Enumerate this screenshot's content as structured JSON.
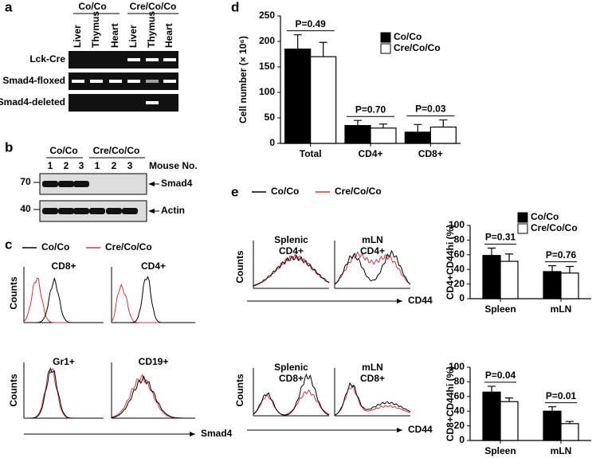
{
  "panels": {
    "a": {
      "label": "a",
      "groups": [
        "Co/Co",
        "Cre/Co/Co"
      ],
      "lanes": [
        "Liver",
        "Thymus",
        "Heart",
        "Liver",
        "Thymus",
        "Heart"
      ],
      "rows": [
        "Lck-Cre",
        "Smad4-floxed",
        "Smad4-deleted"
      ]
    },
    "b": {
      "label": "b",
      "groups": [
        "Co/Co",
        "Cre/Co/Co"
      ],
      "lanes": [
        "1",
        "2",
        "3",
        "1",
        "2",
        "3"
      ],
      "lane_title": "Mouse No.",
      "markers": [
        "70",
        "40"
      ],
      "proteins": [
        "Smad4",
        "Actin"
      ]
    },
    "c": {
      "label": "c",
      "legend": [
        "Co/Co",
        "Cre/Co/Co"
      ],
      "plots": [
        "CD8+",
        "CD4+",
        "Gr1+",
        "CD19+"
      ],
      "y_label": "Counts",
      "x_label": "Smad4"
    },
    "d": {
      "label": "d"
    },
    "e": {
      "label": "e",
      "legend": [
        "Co/Co",
        "Cre/Co/Co"
      ],
      "plots": [
        [
          "Splenic",
          "CD4+"
        ],
        [
          "mLN",
          "CD4+"
        ],
        [
          "Splenic",
          "CD8+"
        ],
        [
          "mLN",
          "CD8+"
        ]
      ],
      "y_label": "Counts",
      "x_label": "CD44"
    }
  },
  "chart_data": [
    {
      "type": "bar",
      "categories": [
        "Total",
        "CD4+",
        "CD8+"
      ],
      "series": [
        {
          "name": "Co/Co",
          "color": "#000000",
          "values": [
            185,
            35,
            22
          ],
          "errors": [
            28,
            10,
            15
          ]
        },
        {
          "name": "Cre/Co/Co",
          "color": "#ffffff",
          "values": [
            170,
            30,
            32
          ],
          "errors": [
            28,
            8,
            14
          ]
        }
      ],
      "y_label": "Cell number (× 10⁶)",
      "ylim": [
        0,
        250
      ],
      "yticks": [
        0,
        50,
        100,
        150,
        200,
        250
      ],
      "annotations": [
        "P=0.49",
        "P=0.70",
        "P=0.03"
      ],
      "legend": "upper right"
    },
    {
      "type": "bar",
      "categories": [
        "Spleen",
        "mLN"
      ],
      "series": [
        {
          "name": "Co/Co",
          "color": "#000000",
          "values": [
            59,
            37
          ],
          "errors": [
            10,
            8
          ]
        },
        {
          "name": "Cre/Co/Co",
          "color": "#ffffff",
          "values": [
            51,
            35
          ],
          "errors": [
            10,
            9
          ]
        }
      ],
      "y_label": "CD4+CD44hi (%)",
      "ylim": [
        0,
        100
      ],
      "yticks": [
        0,
        20,
        40,
        60,
        80,
        100
      ],
      "annotations": [
        "P=0.31",
        "P=0.76"
      ],
      "legend": "upper right"
    },
    {
      "type": "bar",
      "categories": [
        "Spleen",
        "mLN"
      ],
      "series": [
        {
          "name": "Co/Co",
          "color": "#000000",
          "values": [
            66,
            40
          ],
          "errors": [
            8,
            6
          ]
        },
        {
          "name": "Cre/Co/Co",
          "color": "#ffffff",
          "values": [
            53,
            23
          ],
          "errors": [
            5,
            3
          ]
        }
      ],
      "y_label": "CD8+CD44hi (%)",
      "ylim": [
        0,
        100
      ],
      "yticks": [
        0,
        20,
        40,
        60,
        80,
        100
      ],
      "annotations": [
        "P=0.04",
        "P=0.01"
      ]
    }
  ]
}
